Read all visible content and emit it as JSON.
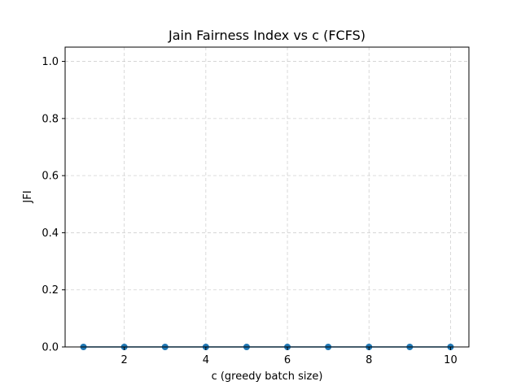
{
  "chart_data": {
    "type": "line",
    "title": "Jain Fairness Index vs c (FCFS)",
    "xlabel": "c (greedy batch size)",
    "ylabel": "JFI",
    "x": [
      1,
      2,
      3,
      4,
      5,
      6,
      7,
      8,
      9,
      10
    ],
    "series": [
      {
        "values": [
          0,
          0,
          0,
          0,
          0,
          0,
          0,
          0,
          0,
          0
        ]
      }
    ],
    "xlim": [
      0.55,
      10.45
    ],
    "ylim": [
      0,
      1.05
    ],
    "xticks": [
      2,
      4,
      6,
      8,
      10
    ],
    "yticks": [
      0.0,
      0.2,
      0.4,
      0.6,
      0.8,
      1.0
    ],
    "xtick_labels": [
      "2",
      "4",
      "6",
      "8",
      "10"
    ],
    "ytick_labels": [
      "0.0",
      "0.2",
      "0.4",
      "0.6",
      "0.8",
      "1.0"
    ],
    "grid": true,
    "marker": "circle",
    "color": "#1f77b4"
  }
}
